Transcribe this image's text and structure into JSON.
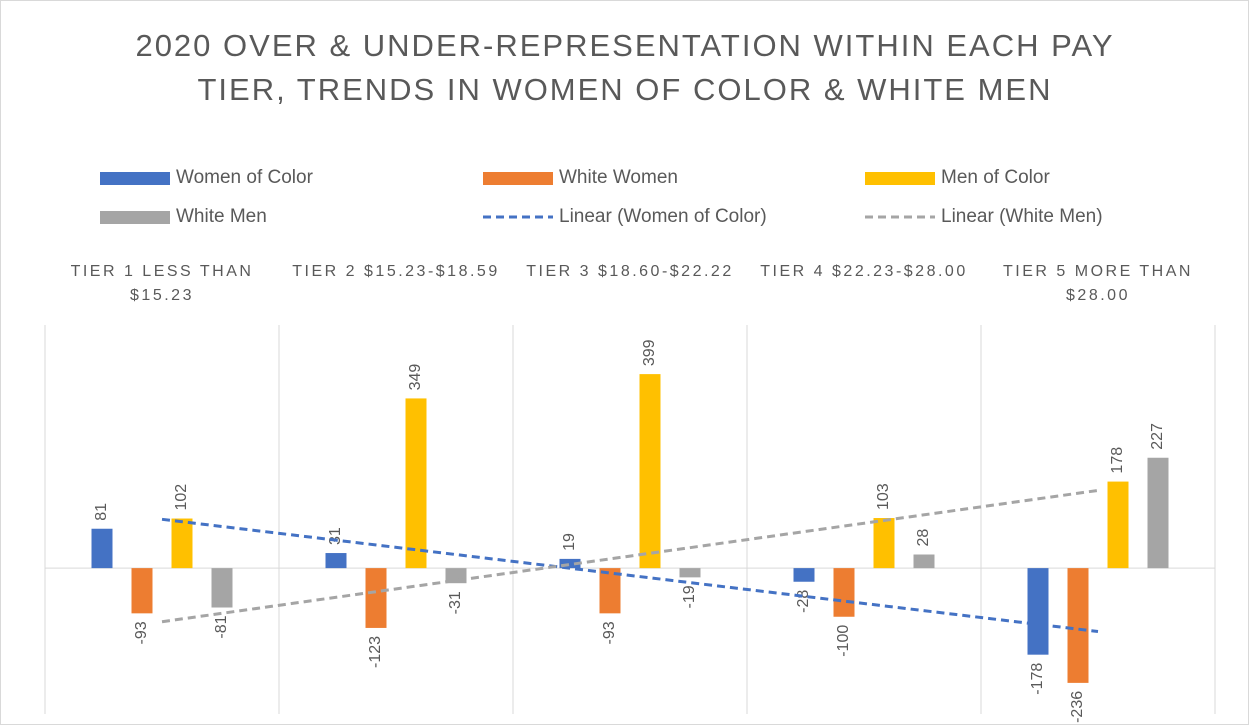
{
  "chart_data": {
    "type": "bar",
    "title": "2020 OVER & UNDER-REPRESENTATION WITHIN EACH PAY TIER, TRENDS IN WOMEN OF COLOR & WHITE MEN",
    "categories": [
      "TIER 1 LESS THAN $15.23",
      "TIER 2 $15.23-$18.59",
      "TIER 3 $18.60-$22.22",
      "TIER 4 $22.23-$28.00",
      "TIER 5 MORE THAN $28.00"
    ],
    "series": [
      {
        "name": "Women of Color",
        "color": "#4472c4",
        "values": [
          81,
          31,
          19,
          -28,
          -178
        ]
      },
      {
        "name": "White Women",
        "color": "#ed7d31",
        "values": [
          -93,
          -123,
          -93,
          -100,
          -236
        ]
      },
      {
        "name": "Men of Color",
        "color": "#ffc000",
        "values": [
          102,
          349,
          399,
          103,
          178
        ]
      },
      {
        "name": "White Men",
        "color": "#a5a5a5",
        "values": [
          -81,
          -31,
          -19,
          28,
          227
        ]
      }
    ],
    "trendlines": [
      {
        "name": "Linear (Women of Color)",
        "color": "#4472c4",
        "series": "Women of Color",
        "style": "dashed"
      },
      {
        "name": "Linear (White Men)",
        "color": "#a5a5a5",
        "series": "White Men",
        "style": "dashed"
      }
    ],
    "ylim": [
      -300,
      500
    ],
    "legend": "top",
    "data_labels": true
  }
}
